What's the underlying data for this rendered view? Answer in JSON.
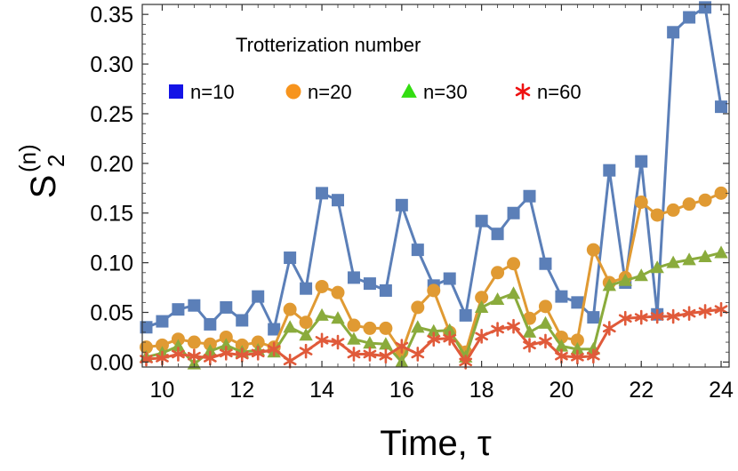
{
  "chart_data": {
    "type": "line",
    "title": "",
    "xlabel": "Time, τ",
    "ylabel": {
      "base": "S",
      "sub": "2",
      "sup": "(n)"
    },
    "xlim": [
      9.5,
      24.2
    ],
    "ylim": [
      -0.005,
      0.36
    ],
    "x_ticks": [
      10,
      12,
      14,
      16,
      18,
      20,
      22,
      24
    ],
    "y_ticks": [
      0.0,
      0.05,
      0.1,
      0.15,
      0.2,
      0.25,
      0.3,
      0.35
    ],
    "x_tick_labels": [
      "10",
      "12",
      "14",
      "16",
      "18",
      "20",
      "22",
      "24"
    ],
    "y_tick_labels": [
      "0.00",
      "0.05",
      "0.10",
      "0.15",
      "0.20",
      "0.25",
      "0.30",
      "0.35"
    ],
    "legend_title": "Trotterization number",
    "legend_position": "top-left inside",
    "x": [
      9.6,
      10.0,
      10.4,
      10.8,
      11.2,
      11.6,
      12.0,
      12.4,
      12.8,
      13.2,
      13.6,
      14.0,
      14.4,
      14.8,
      15.2,
      15.6,
      16.0,
      16.4,
      16.8,
      17.2,
      17.6,
      18.0,
      18.4,
      18.8,
      19.2,
      19.6,
      20.0,
      20.4,
      20.8,
      21.2,
      21.6,
      22.0,
      22.4,
      22.8,
      23.2,
      23.6,
      24.0
    ],
    "series": [
      {
        "name": "n=10",
        "color": "#5b7fb8",
        "legend_color": "#1414e6",
        "marker": "square",
        "values": [
          0.035,
          0.041,
          0.053,
          0.057,
          0.038,
          0.055,
          0.042,
          0.066,
          0.033,
          0.105,
          0.074,
          0.17,
          0.163,
          0.085,
          0.079,
          0.072,
          0.158,
          0.113,
          0.077,
          0.084,
          0.047,
          0.142,
          0.129,
          0.15,
          0.167,
          0.099,
          0.066,
          0.06,
          0.045,
          0.193,
          0.08,
          0.202,
          0.048,
          0.332,
          0.347,
          0.357,
          0.257
        ]
      },
      {
        "name": "n=20",
        "color": "#e09a33",
        "legend_color": "#f7941d",
        "marker": "circle",
        "values": [
          0.015,
          0.017,
          0.023,
          0.02,
          0.018,
          0.025,
          0.017,
          0.02,
          0.015,
          0.053,
          0.04,
          0.076,
          0.07,
          0.037,
          0.034,
          0.034,
          0.01,
          0.055,
          0.072,
          0.03,
          0.01,
          0.065,
          0.09,
          0.099,
          0.044,
          0.056,
          0.025,
          0.022,
          0.113,
          0.08,
          0.085,
          0.161,
          0.148,
          0.153,
          0.159,
          0.163,
          0.17
        ]
      },
      {
        "name": "n=30",
        "color": "#8aab3c",
        "legend_color": "#33dd11",
        "marker": "triangle",
        "values": [
          0.005,
          0.009,
          0.016,
          -0.002,
          0.011,
          0.017,
          0.01,
          0.012,
          0.01,
          0.035,
          0.027,
          0.047,
          0.044,
          0.023,
          0.019,
          0.018,
          0.0,
          0.035,
          0.031,
          0.032,
          0.005,
          0.055,
          0.063,
          0.069,
          0.03,
          0.039,
          0.016,
          0.013,
          0.013,
          0.077,
          0.082,
          0.087,
          0.095,
          0.1,
          0.103,
          0.106,
          0.11
        ]
      },
      {
        "name": "n=60",
        "color": "#e05a3a",
        "legend_color": "#ee1111",
        "marker": "star",
        "values": [
          0.003,
          0.004,
          0.008,
          0.006,
          0.004,
          0.009,
          0.007,
          0.009,
          0.013,
          0.001,
          0.011,
          0.022,
          0.02,
          0.008,
          0.008,
          0.006,
          0.016,
          0.008,
          0.023,
          0.024,
          0.0,
          0.026,
          0.033,
          0.036,
          0.017,
          0.021,
          0.006,
          0.005,
          0.006,
          0.034,
          0.044,
          0.045,
          0.046,
          0.046,
          0.049,
          0.051,
          0.053
        ]
      }
    ]
  }
}
